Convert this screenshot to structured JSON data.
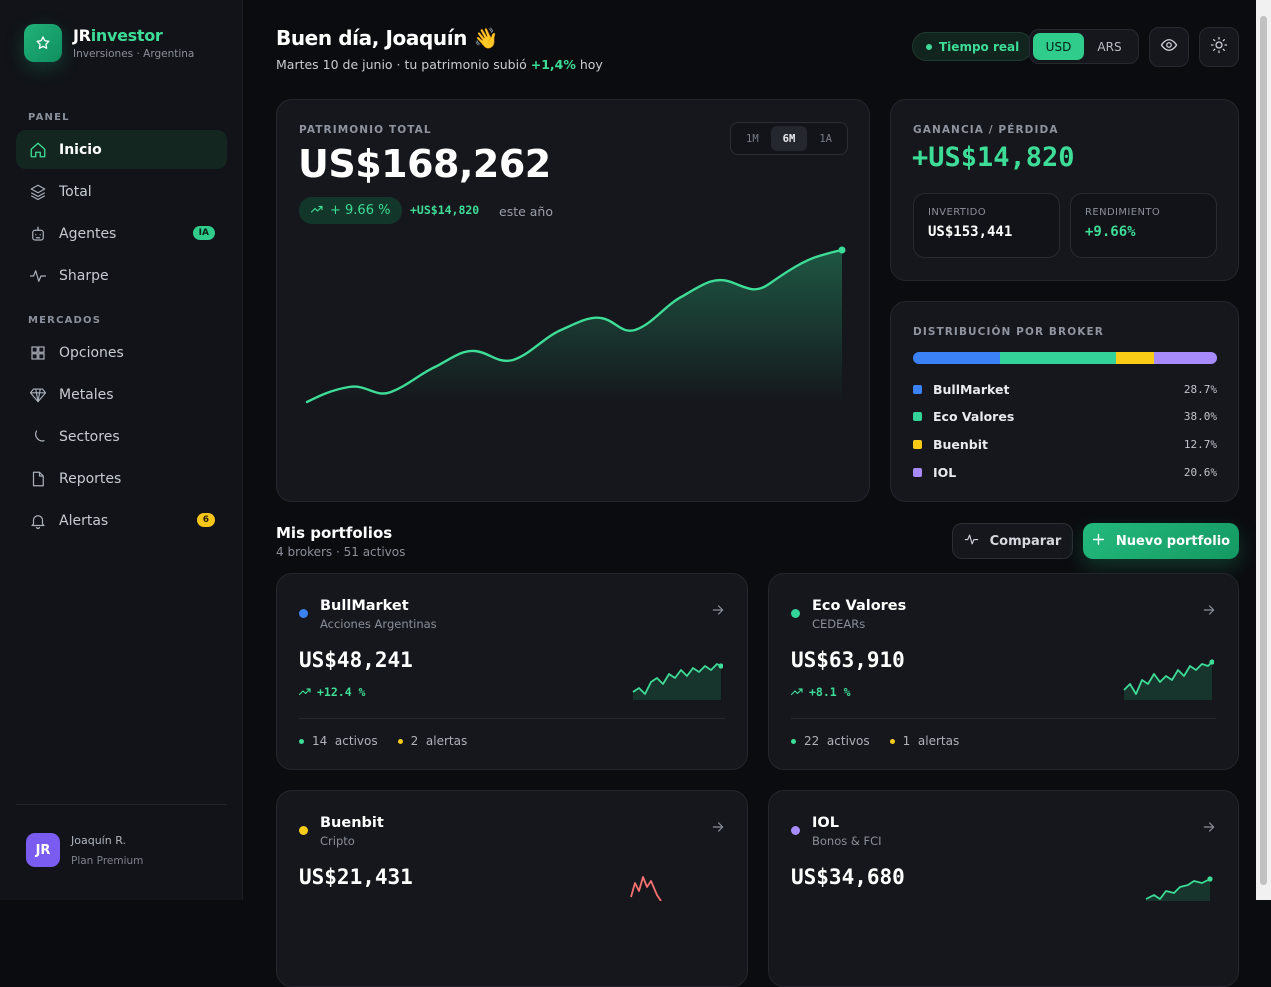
{
  "brand": {
    "name_part1": "JR",
    "name_part2": "investor",
    "subtitle": "Inversiones · Argentina"
  },
  "nav": {
    "section_panel": "PANEL",
    "section_markets": "MERCADOS",
    "items": [
      {
        "label": "Inicio",
        "icon": "home-icon",
        "active": true
      },
      {
        "label": "Total",
        "icon": "layers-icon"
      },
      {
        "label": "Agentes",
        "icon": "robot-icon",
        "badge": "IA"
      },
      {
        "label": "Sharpe",
        "icon": "pulse-icon"
      },
      {
        "label": "Opciones",
        "icon": "grid-icon"
      },
      {
        "label": "Metales",
        "icon": "diamond-icon"
      },
      {
        "label": "Sectores",
        "icon": "moon-icon"
      },
      {
        "label": "Reportes",
        "icon": "file-icon"
      },
      {
        "label": "Alertas",
        "icon": "bell-icon",
        "badge": "6"
      }
    ]
  },
  "user": {
    "initials": "JR",
    "name": "Joaquín R.",
    "plan": "Plan Premium"
  },
  "header": {
    "greeting": "Buen día, Joaquín",
    "greeting_emoji": "👋",
    "sub_prefix": "Martes 10 de junio · tu patrimonio subió",
    "sub_change": "+1,4%",
    "sub_suffix": "hoy",
    "live_label": "Tiempo real",
    "currency_options": [
      "USD",
      "ARS"
    ],
    "currency_selected": "USD"
  },
  "patrimonio": {
    "label": "PATRIMONIO TOTAL",
    "value": "US$168,262",
    "ranges": [
      "1M",
      "6M",
      "1A"
    ],
    "range_selected": "6M",
    "change_pct": "+ 9.66 %",
    "change_abs": "+US$14,820",
    "period": "este año",
    "accent": "#3ddc97"
  },
  "ganancia": {
    "label": "GANANCIA / PÉRDIDA",
    "value": "+US$14,820",
    "invertido_label": "INVERTIDO",
    "invertido_value": "US$153,441",
    "rendimiento_label": "RENDIMIENTO",
    "rendimiento_value": "+9.66%"
  },
  "distribucion": {
    "label": "DISTRIBUCIÓN POR BROKER",
    "brokers": [
      {
        "name": "BullMarket",
        "pct": "28.7%",
        "share": 28.7,
        "color": "#3b82f6"
      },
      {
        "name": "Eco Valores",
        "pct": "38.0%",
        "share": 38.0,
        "color": "#34d399"
      },
      {
        "name": "Buenbit",
        "pct": "12.7%",
        "share": 12.7,
        "color": "#facc15"
      },
      {
        "name": "IOL",
        "pct": "20.6%",
        "share": 20.6,
        "color": "#a78bfa"
      }
    ]
  },
  "portfolios": {
    "title": "Mis portfolios",
    "subtitle": "4 brokers · 51 activos",
    "compare_label": "Comparar",
    "new_label": "Nuevo portfolio",
    "cards": [
      {
        "name": "BullMarket",
        "type": "Acciones Argentinas",
        "value": "US$48,241",
        "change": "+12.4 %",
        "assets_count": "14",
        "assets_label": "activos",
        "alerts_count": "2",
        "alerts_label": "alertas",
        "color": "#3b82f6"
      },
      {
        "name": "Eco Valores",
        "type": "CEDEARs",
        "value": "US$63,910",
        "change": "+8.1 %",
        "assets_count": "22",
        "assets_label": "activos",
        "alerts_count": "1",
        "alerts_label": "alertas",
        "color": "#34d399"
      },
      {
        "name": "Buenbit",
        "type": "Cripto",
        "value": "US$21,431",
        "color": "#facc15"
      },
      {
        "name": "IOL",
        "type": "Bonos & FCI",
        "value": "US$34,680",
        "color": "#a78bfa"
      }
    ]
  }
}
